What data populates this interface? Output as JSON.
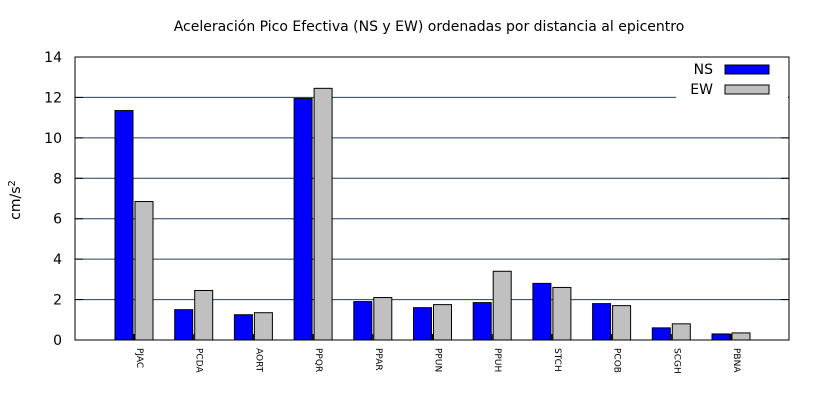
{
  "chart_data": {
    "type": "bar",
    "title": "Aceleración Pico Efectiva (NS y EW) ordenadas por distancia al epicentro",
    "ylabel": "cm/s",
    "ylabel_superscript": "2",
    "xlabel": "",
    "ylim": [
      0,
      14
    ],
    "yticks": [
      0,
      2,
      4,
      6,
      8,
      10,
      12,
      14
    ],
    "grid": true,
    "legend_position": "top-right",
    "categories": [
      "PJAC",
      "PCDA",
      "AORT",
      "PPQR",
      "PPAR",
      "PPUN",
      "PPUH",
      "STCH",
      "PCOB",
      "SCGH",
      "PBNA"
    ],
    "series": [
      {
        "name": "NS",
        "color": "#0000ff",
        "values": [
          11.35,
          1.5,
          1.25,
          11.95,
          1.9,
          1.6,
          1.85,
          2.8,
          1.8,
          0.6,
          0.3
        ]
      },
      {
        "name": "EW",
        "color": "#c0c0c0",
        "values": [
          6.85,
          2.45,
          1.35,
          12.45,
          2.1,
          1.75,
          3.4,
          2.6,
          1.7,
          0.8,
          0.35
        ]
      }
    ],
    "gridline_color": "#1f3f5f"
  }
}
